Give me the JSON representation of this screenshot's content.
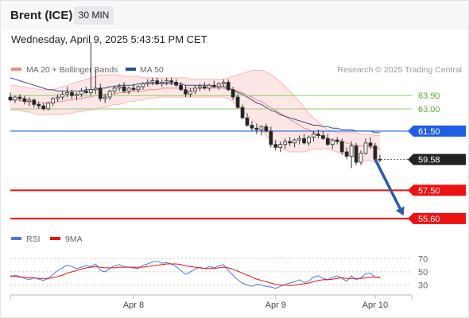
{
  "header": {
    "title": "Brent (ICE)",
    "timeframe": "30 MIN"
  },
  "timestamp": "Wednesday, April 9, 2025 5:43:51 PM CET",
  "attribution": "Research © 2025 Trading Central",
  "colors": {
    "bullish": "#f2f2f2",
    "bearish": "#222222",
    "ma50": "#2b4f8f",
    "bollinger": "#f08a8a",
    "bollinger_fill": "#fde6e6",
    "resistance_green": "#8fcf6a",
    "pivot_blue": "#1f5ee6",
    "support_red": "#ee1111",
    "rsi_line": "#4a78d6",
    "rsi_ma": "#ee1111",
    "arrow": "#2b5aa8"
  },
  "chart_data": [
    {
      "type": "candlestick",
      "legend": [
        {
          "name": "MA 20 + Bollinger Bands",
          "color": "#f08a8a"
        },
        {
          "name": "MA 50",
          "color": "#2b4f8f"
        }
      ],
      "x_tick_labels": [
        {
          "label": "Apr 8",
          "index": 26
        },
        {
          "label": "Apr 9",
          "index": 56
        },
        {
          "label": "Apr 10",
          "index": 77
        }
      ],
      "ylim": [
        55.0,
        65.2
      ],
      "levels": [
        {
          "value": 63.9,
          "label": "63.90",
          "kind": "resistance"
        },
        {
          "value": 63.0,
          "label": "63.00",
          "kind": "resistance"
        },
        {
          "value": 61.5,
          "label": "61.50",
          "kind": "pivot"
        },
        {
          "value": 59.58,
          "label": "59.58",
          "kind": "last"
        },
        {
          "value": 57.5,
          "label": "57.50",
          "kind": "support"
        },
        {
          "value": 55.6,
          "label": "55.60",
          "kind": "support"
        }
      ],
      "forecast_arrow": {
        "from_index": 77,
        "from": 59.6,
        "to_index": 83,
        "to": 55.8
      },
      "candles": [
        [
          63.8,
          64.1,
          63.5,
          63.6
        ],
        [
          63.6,
          63.9,
          63.4,
          63.8
        ],
        [
          63.8,
          64.0,
          63.5,
          63.7
        ],
        [
          63.7,
          63.9,
          63.3,
          63.5
        ],
        [
          63.5,
          63.8,
          63.2,
          63.6
        ],
        [
          63.6,
          63.7,
          63.1,
          63.3
        ],
        [
          63.3,
          63.5,
          63.0,
          63.2
        ],
        [
          63.2,
          63.4,
          62.9,
          63.0
        ],
        [
          63.0,
          63.5,
          62.9,
          63.4
        ],
        [
          63.4,
          63.8,
          63.2,
          63.7
        ],
        [
          63.7,
          64.0,
          63.5,
          63.8
        ],
        [
          63.8,
          64.2,
          63.6,
          64.0
        ],
        [
          64.0,
          64.5,
          63.8,
          64.1
        ],
        [
          64.1,
          64.3,
          63.7,
          63.9
        ],
        [
          63.9,
          64.1,
          63.6,
          64.0
        ],
        [
          64.0,
          64.4,
          63.8,
          64.2
        ],
        [
          64.2,
          64.5,
          64.0,
          64.1
        ],
        [
          64.1,
          67.5,
          63.9,
          64.3
        ],
        [
          64.3,
          65.6,
          64.0,
          64.4
        ],
        [
          64.4,
          64.7,
          63.5,
          63.7
        ],
        [
          63.7,
          64.0,
          63.4,
          63.8
        ],
        [
          63.8,
          64.3,
          63.6,
          64.2
        ],
        [
          64.2,
          64.6,
          64.0,
          64.4
        ],
        [
          64.4,
          64.7,
          64.2,
          64.5
        ],
        [
          64.5,
          64.8,
          64.1,
          64.2
        ],
        [
          64.2,
          64.5,
          64.0,
          64.4
        ],
        [
          64.4,
          64.7,
          64.2,
          64.3
        ],
        [
          64.3,
          64.6,
          64.1,
          64.5
        ],
        [
          64.5,
          64.8,
          64.3,
          64.7
        ],
        [
          64.7,
          65.0,
          64.5,
          64.8
        ],
        [
          64.8,
          65.1,
          64.6,
          64.9
        ],
        [
          64.9,
          65.1,
          64.6,
          64.7
        ],
        [
          64.7,
          65.0,
          64.5,
          64.8
        ],
        [
          64.8,
          65.1,
          64.6,
          64.9
        ],
        [
          64.9,
          65.1,
          64.6,
          64.8
        ],
        [
          64.8,
          65.0,
          64.5,
          64.6
        ],
        [
          64.6,
          64.8,
          64.2,
          64.3
        ],
        [
          64.3,
          64.6,
          63.8,
          64.0
        ],
        [
          64.0,
          64.4,
          63.8,
          64.2
        ],
        [
          64.2,
          64.6,
          64.0,
          64.4
        ],
        [
          64.4,
          64.7,
          64.2,
          64.5
        ],
        [
          64.5,
          64.8,
          64.3,
          64.4
        ],
        [
          64.4,
          64.7,
          64.2,
          64.6
        ],
        [
          64.6,
          64.9,
          64.4,
          64.5
        ],
        [
          64.5,
          64.8,
          64.3,
          64.7
        ],
        [
          64.7,
          65.0,
          64.5,
          64.8
        ],
        [
          64.8,
          65.0,
          64.2,
          64.3
        ],
        [
          64.3,
          64.5,
          63.6,
          63.8
        ],
        [
          63.8,
          64.0,
          63.0,
          63.1
        ],
        [
          63.1,
          63.3,
          62.3,
          62.4
        ],
        [
          62.4,
          62.7,
          61.8,
          61.9
        ],
        [
          61.9,
          62.2,
          61.5,
          61.7
        ],
        [
          61.7,
          62.0,
          61.3,
          61.6
        ],
        [
          61.6,
          61.9,
          61.2,
          61.8
        ],
        [
          61.8,
          62.0,
          61.4,
          61.5
        ],
        [
          61.5,
          61.8,
          60.4,
          60.6
        ],
        [
          60.6,
          60.9,
          60.2,
          60.4
        ],
        [
          60.4,
          60.8,
          60.1,
          60.6
        ],
        [
          60.6,
          61.0,
          60.3,
          60.8
        ],
        [
          60.8,
          61.1,
          60.5,
          60.7
        ],
        [
          60.7,
          61.0,
          60.4,
          60.9
        ],
        [
          60.9,
          61.2,
          60.6,
          61.0
        ],
        [
          61.0,
          61.3,
          60.6,
          60.7
        ],
        [
          60.7,
          61.2,
          60.5,
          61.1
        ],
        [
          61.1,
          61.5,
          60.8,
          61.3
        ],
        [
          61.3,
          61.6,
          61.0,
          61.2
        ],
        [
          61.2,
          61.5,
          60.9,
          61.0
        ],
        [
          61.0,
          61.3,
          60.5,
          60.6
        ],
        [
          60.6,
          61.0,
          60.3,
          60.9
        ],
        [
          60.9,
          61.1,
          60.6,
          60.8
        ],
        [
          60.8,
          61.0,
          59.9,
          60.1
        ],
        [
          60.1,
          60.4,
          59.6,
          59.8
        ],
        [
          59.8,
          60.8,
          59.0,
          60.5
        ],
        [
          60.5,
          60.7,
          59.2,
          59.4
        ],
        [
          59.4,
          60.2,
          59.2,
          60.0
        ],
        [
          60.0,
          61.0,
          59.9,
          60.7
        ],
        [
          60.7,
          61.1,
          60.3,
          60.5
        ],
        [
          60.5,
          60.7,
          59.5,
          59.6
        ],
        [
          59.6,
          59.9,
          59.4,
          59.58
        ]
      ],
      "ma20": [
        63.6,
        63.6,
        63.6,
        63.5,
        63.5,
        63.4,
        63.4,
        63.4,
        63.4,
        63.4,
        63.5,
        63.5,
        63.6,
        63.6,
        63.7,
        63.7,
        63.8,
        63.8,
        63.9,
        63.9,
        64.0,
        64.0,
        64.0,
        64.1,
        64.1,
        64.1,
        64.2,
        64.2,
        64.2,
        64.3,
        64.3,
        64.3,
        64.4,
        64.4,
        64.4,
        64.4,
        64.4,
        64.4,
        64.4,
        64.4,
        64.4,
        64.4,
        64.4,
        64.4,
        64.4,
        64.4,
        64.3,
        64.3,
        64.2,
        64.1,
        63.9,
        63.8,
        63.6,
        63.5,
        63.3,
        63.1,
        62.9,
        62.7,
        62.5,
        62.3,
        62.1,
        61.9,
        61.7,
        61.6,
        61.4,
        61.3,
        61.1,
        61.0,
        60.9,
        60.8,
        60.8,
        60.7,
        60.6,
        60.5,
        60.5,
        60.5,
        60.4,
        60.4,
        60.3
      ],
      "bb_upper": [
        64.6,
        64.6,
        64.5,
        64.5,
        64.4,
        64.4,
        64.3,
        64.3,
        64.3,
        64.3,
        64.4,
        64.5,
        64.6,
        64.7,
        64.8,
        64.9,
        65.0,
        65.1,
        65.2,
        65.3,
        65.3,
        65.3,
        65.3,
        65.3,
        65.2,
        65.2,
        65.2,
        65.2,
        65.1,
        65.1,
        65.1,
        65.1,
        65.1,
        65.1,
        65.1,
        65.1,
        65.1,
        65.1,
        65.0,
        65.0,
        65.0,
        65.0,
        65.0,
        65.0,
        65.0,
        65.0,
        65.1,
        65.2,
        65.3,
        65.4,
        65.5,
        65.6,
        65.6,
        65.6,
        65.5,
        65.3,
        65.1,
        64.8,
        64.5,
        64.2,
        63.9,
        63.5,
        63.1,
        62.7,
        62.4,
        62.1,
        61.8,
        61.6,
        61.5,
        61.4,
        61.4,
        61.4,
        61.4,
        61.4,
        61.3,
        61.3,
        61.3,
        61.2,
        61.2
      ],
      "bb_lower": [
        62.9,
        62.9,
        62.9,
        62.8,
        62.8,
        62.7,
        62.6,
        62.6,
        62.6,
        62.6,
        62.6,
        62.6,
        62.7,
        62.7,
        62.8,
        62.8,
        62.9,
        62.9,
        63.0,
        63.1,
        63.1,
        63.2,
        63.3,
        63.3,
        63.4,
        63.5,
        63.5,
        63.6,
        63.6,
        63.7,
        63.7,
        63.8,
        63.8,
        63.8,
        63.8,
        63.8,
        63.8,
        63.8,
        63.8,
        63.8,
        63.8,
        63.8,
        63.8,
        63.8,
        63.8,
        63.8,
        63.7,
        63.5,
        63.2,
        62.9,
        62.6,
        62.3,
        62.0,
        61.6,
        61.2,
        60.9,
        60.6,
        60.4,
        60.2,
        60.1,
        60.1,
        60.1,
        60.1,
        60.2,
        60.3,
        60.3,
        60.3,
        60.3,
        60.2,
        60.1,
        60.0,
        59.9,
        59.8,
        59.7,
        59.6,
        59.5,
        59.5,
        59.4,
        59.3
      ],
      "ma50": [
        65.1,
        65.0,
        64.9,
        64.8,
        64.7,
        64.6,
        64.5,
        64.4,
        64.3,
        64.3,
        64.2,
        64.2,
        64.2,
        64.2,
        64.2,
        64.2,
        64.3,
        64.3,
        64.3,
        64.4,
        64.4,
        64.5,
        64.5,
        64.6,
        64.6,
        64.6,
        64.6,
        64.7,
        64.7,
        64.7,
        64.7,
        64.7,
        64.7,
        64.7,
        64.7,
        64.7,
        64.7,
        64.6,
        64.6,
        64.6,
        64.6,
        64.6,
        64.6,
        64.5,
        64.5,
        64.5,
        64.4,
        64.3,
        64.1,
        64.0,
        63.8,
        63.6,
        63.4,
        63.3,
        63.1,
        62.9,
        62.8,
        62.6,
        62.5,
        62.4,
        62.3,
        62.2,
        62.1,
        62.0,
        61.9,
        61.9,
        61.8,
        61.8,
        61.7,
        61.7,
        61.6,
        61.6,
        61.6,
        61.5,
        61.5,
        61.5,
        61.5,
        61.4,
        61.4
      ]
    },
    {
      "type": "line",
      "legend": [
        {
          "name": "RSI",
          "color": "#4a78d6"
        },
        {
          "name": "9MA",
          "color": "#ee1111"
        }
      ],
      "ylim": [
        15,
        80
      ],
      "y_ticks": [
        {
          "value": 70,
          "label": "70"
        },
        {
          "value": 50,
          "label": "50"
        },
        {
          "value": 30,
          "label": "30"
        }
      ],
      "series": [
        {
          "name": "RSI",
          "values": [
            42,
            45,
            43,
            40,
            38,
            41,
            39,
            37,
            40,
            46,
            52,
            56,
            60,
            58,
            55,
            57,
            60,
            58,
            62,
            52,
            50,
            55,
            59,
            61,
            58,
            57,
            56,
            55,
            60,
            62,
            65,
            66,
            63,
            64,
            62,
            58,
            52,
            46,
            50,
            54,
            57,
            55,
            58,
            56,
            59,
            61,
            52,
            45,
            38,
            33,
            30,
            28,
            31,
            30,
            28,
            27,
            25,
            28,
            31,
            33,
            35,
            38,
            34,
            36,
            42,
            44,
            40,
            38,
            42,
            44,
            40,
            36,
            44,
            38,
            41,
            47,
            48,
            42,
            41
          ]
        },
        {
          "name": "9MA",
          "values": [
            44,
            43,
            42,
            42,
            41,
            41,
            40,
            40,
            40,
            41,
            43,
            45,
            48,
            50,
            52,
            54,
            56,
            57,
            58,
            57,
            56,
            56,
            56,
            57,
            57,
            57,
            57,
            57,
            57,
            58,
            59,
            60,
            61,
            62,
            62,
            62,
            61,
            59,
            58,
            57,
            56,
            55,
            55,
            55,
            56,
            57,
            56,
            54,
            51,
            48,
            45,
            42,
            39,
            37,
            35,
            33,
            31,
            30,
            30,
            29,
            30,
            31,
            32,
            33,
            35,
            37,
            38,
            38,
            39,
            40,
            41,
            40,
            40,
            40,
            40,
            41,
            42,
            42,
            42
          ]
        }
      ]
    }
  ]
}
